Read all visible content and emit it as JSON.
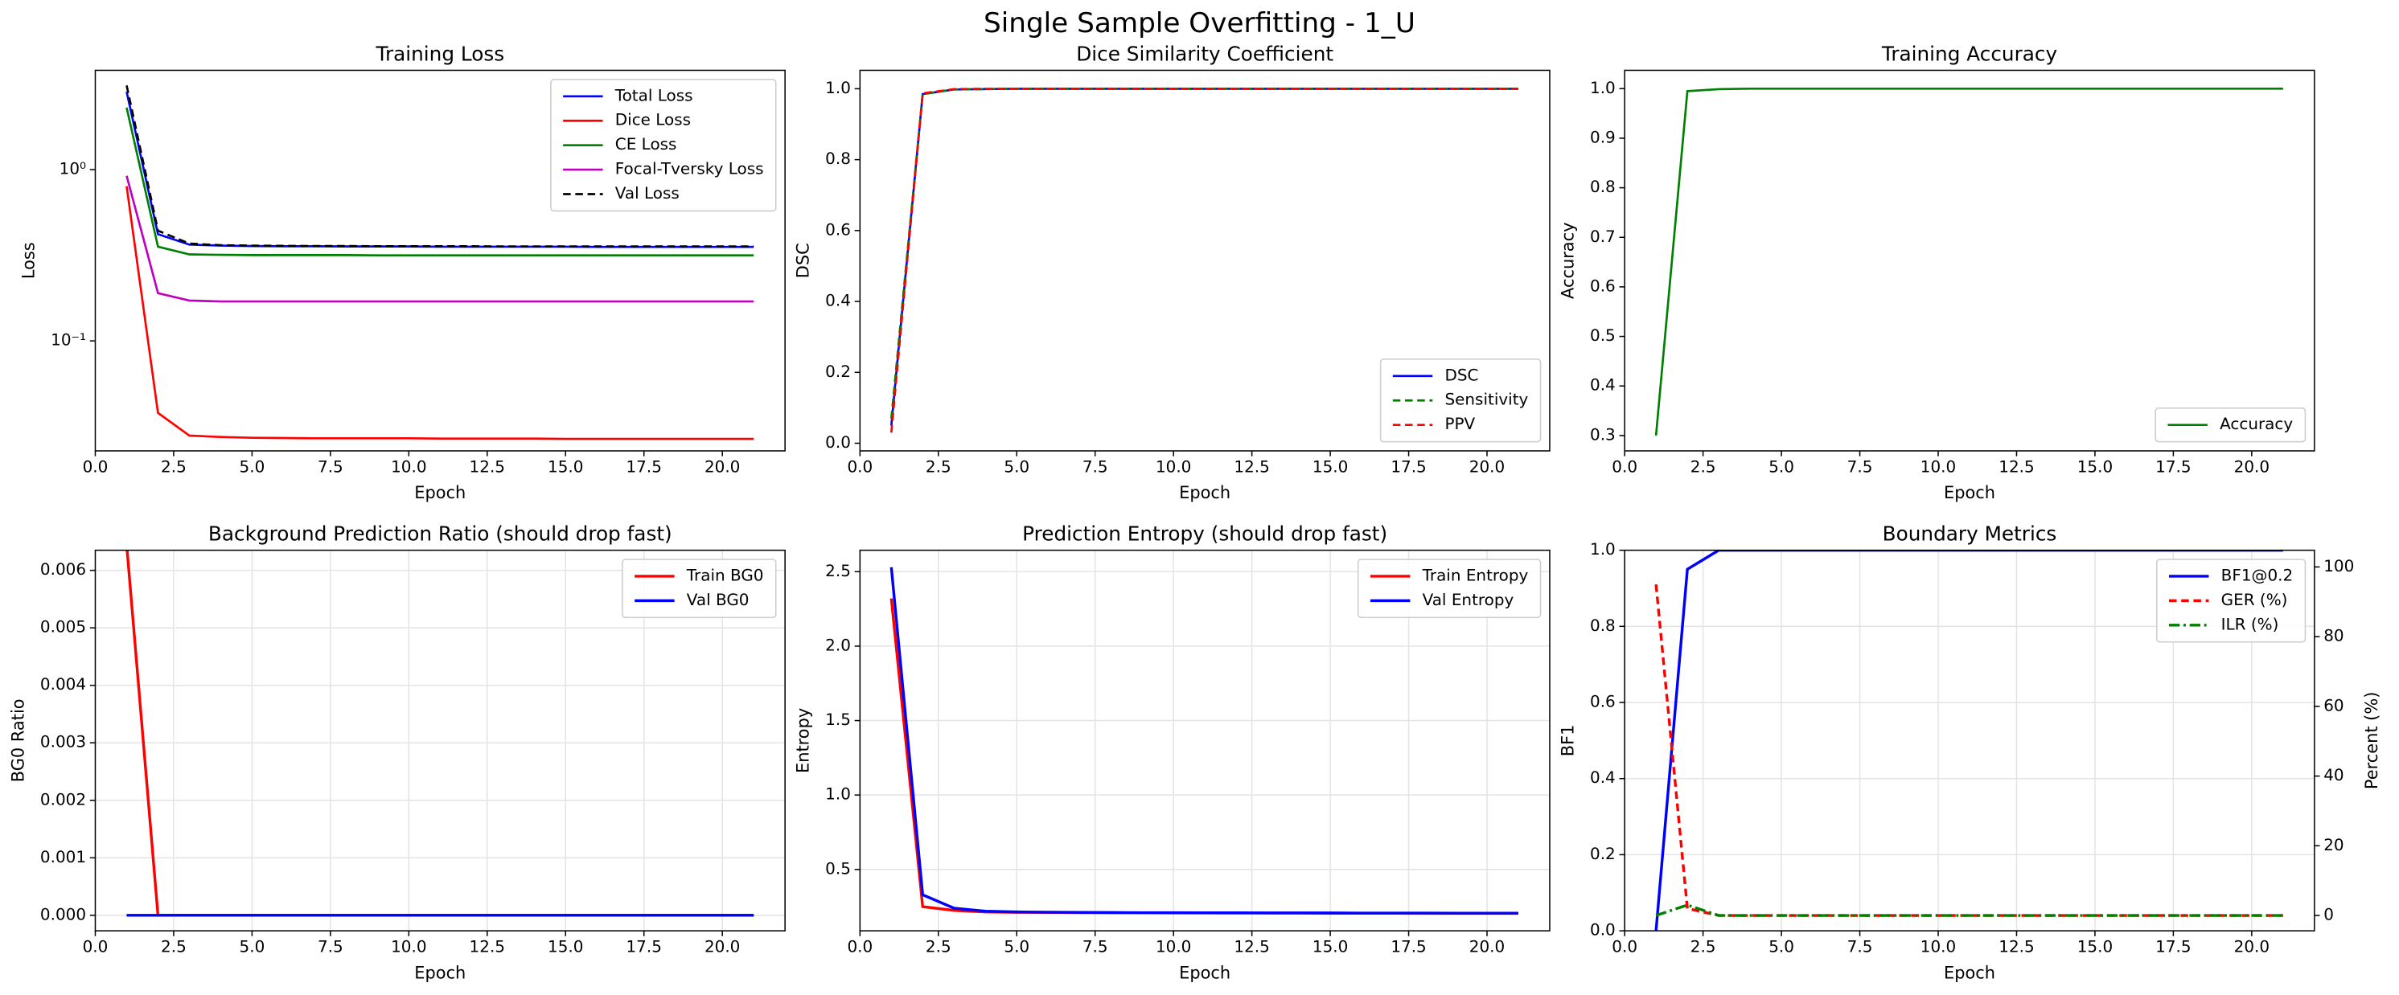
{
  "title": "Single Sample Overfitting - 1_U",
  "chart_data": [
    {
      "type": "line",
      "title": "Training Loss",
      "xlabel": "Epoch",
      "ylabel": "Loss",
      "yscale": "log",
      "grid": false,
      "legend": "upper right",
      "x": [
        1,
        2,
        3,
        4,
        5,
        6,
        7,
        8,
        9,
        10,
        11,
        12,
        13,
        14,
        15,
        16,
        17,
        18,
        19,
        20,
        21
      ],
      "xlim": [
        0,
        22
      ],
      "xticks": [
        {
          "value": 0,
          "label": "0.0"
        },
        2.5,
        {
          "value": 5,
          "label": "5.0"
        },
        7.5,
        {
          "value": 10,
          "label": "10.0"
        },
        12.5,
        {
          "value": 15,
          "label": "15.0"
        },
        17.5,
        {
          "value": 20,
          "label": "20.0"
        }
      ],
      "ylim": [
        0.0228,
        3.8
      ],
      "yticks": [
        {
          "value": 1,
          "label": "10⁰"
        },
        {
          "value": 0.1,
          "label": "10⁻¹"
        }
      ],
      "series": [
        {
          "name": "Total Loss",
          "color": "#0000ff",
          "style": "solid",
          "values": [
            2.85,
            0.42,
            0.365,
            0.36,
            0.358,
            0.357,
            0.357,
            0.356,
            0.356,
            0.356,
            0.355,
            0.355,
            0.355,
            0.355,
            0.355,
            0.354,
            0.354,
            0.354,
            0.354,
            0.354,
            0.354
          ]
        },
        {
          "name": "Dice Loss",
          "color": "#ff0000",
          "style": "solid",
          "values": [
            0.8,
            0.038,
            0.028,
            0.0275,
            0.0272,
            0.0271,
            0.027,
            0.027,
            0.027,
            0.027,
            0.0269,
            0.0269,
            0.0269,
            0.0269,
            0.0268,
            0.0268,
            0.0268,
            0.0268,
            0.0268,
            0.0268,
            0.0268
          ]
        },
        {
          "name": "CE Loss",
          "color": "#008000",
          "style": "solid",
          "values": [
            2.3,
            0.355,
            0.32,
            0.318,
            0.317,
            0.317,
            0.317,
            0.317,
            0.316,
            0.316,
            0.316,
            0.316,
            0.316,
            0.316,
            0.316,
            0.316,
            0.316,
            0.316,
            0.316,
            0.316,
            0.316
          ]
        },
        {
          "name": "Focal-Tversky Loss",
          "color": "#bf00bf",
          "style": "solid",
          "values": [
            0.92,
            0.19,
            0.172,
            0.17,
            0.17,
            0.17,
            0.17,
            0.17,
            0.17,
            0.17,
            0.17,
            0.17,
            0.17,
            0.17,
            0.17,
            0.17,
            0.17,
            0.17,
            0.17,
            0.17,
            0.17
          ]
        },
        {
          "name": "Val Loss",
          "color": "#000000",
          "style": "dashed",
          "values": [
            3.1,
            0.44,
            0.37,
            0.362,
            0.36,
            0.359,
            0.358,
            0.358,
            0.357,
            0.357,
            0.357,
            0.357,
            0.356,
            0.356,
            0.356,
            0.356,
            0.356,
            0.356,
            0.356,
            0.356,
            0.356
          ]
        }
      ]
    },
    {
      "type": "line",
      "title": "Dice Similarity Coefficient",
      "xlabel": "Epoch",
      "ylabel": "DSC",
      "yscale": "linear",
      "grid": false,
      "legend": "lower right",
      "x": [
        1,
        2,
        3,
        4,
        5,
        6,
        7,
        8,
        9,
        10,
        11,
        12,
        13,
        14,
        15,
        16,
        17,
        18,
        19,
        20,
        21
      ],
      "xlim": [
        0,
        22
      ],
      "xticks": [
        {
          "value": 0,
          "label": "0.0"
        },
        2.5,
        {
          "value": 5,
          "label": "5.0"
        },
        7.5,
        {
          "value": 10,
          "label": "10.0"
        },
        12.5,
        {
          "value": 15,
          "label": "15.0"
        },
        17.5,
        {
          "value": 20,
          "label": "20.0"
        }
      ],
      "ylim": [
        -0.0215,
        1.052
      ],
      "yticks": [
        {
          "value": 0,
          "label": "0.0"
        },
        0.2,
        0.4,
        0.6,
        0.8,
        {
          "value": 1,
          "label": "1.0"
        }
      ],
      "series": [
        {
          "name": "DSC",
          "color": "#0000ff",
          "style": "solid",
          "values": [
            0.05,
            0.985,
            0.998,
            0.999,
            1,
            1,
            1,
            1,
            1,
            1,
            1,
            1,
            1,
            1,
            1,
            1,
            1,
            1,
            1,
            1,
            1
          ]
        },
        {
          "name": "Sensitivity",
          "color": "#008000",
          "style": "dashed",
          "values": [
            0.07,
            0.985,
            0.998,
            0.999,
            1,
            1,
            1,
            1,
            1,
            1,
            1,
            1,
            1,
            1,
            1,
            1,
            1,
            1,
            1,
            1,
            1
          ]
        },
        {
          "name": "PPV",
          "color": "#ff0000",
          "style": "dashed",
          "values": [
            0.03,
            0.987,
            0.999,
            1,
            1,
            1,
            1,
            1,
            1,
            1,
            1,
            1,
            1,
            1,
            1,
            1,
            1,
            1,
            1,
            1,
            1
          ]
        }
      ]
    },
    {
      "type": "line",
      "title": "Training Accuracy",
      "xlabel": "Epoch",
      "ylabel": "Accuracy",
      "yscale": "linear",
      "grid": false,
      "legend": "lower right",
      "x": [
        1,
        2,
        3,
        4,
        5,
        6,
        7,
        8,
        9,
        10,
        11,
        12,
        13,
        14,
        15,
        16,
        17,
        18,
        19,
        20,
        21
      ],
      "xlim": [
        0,
        22
      ],
      "xticks": [
        {
          "value": 0,
          "label": "0.0"
        },
        2.5,
        {
          "value": 5,
          "label": "5.0"
        },
        7.5,
        {
          "value": 10,
          "label": "10.0"
        },
        12.5,
        {
          "value": 15,
          "label": "15.0"
        },
        17.5,
        {
          "value": 20,
          "label": "20.0"
        }
      ],
      "ylim": [
        0.269,
        1.037
      ],
      "yticks": [
        0.3,
        0.4,
        0.5,
        0.6,
        0.7,
        0.8,
        0.9,
        {
          "value": 1,
          "label": "1.0"
        }
      ],
      "series": [
        {
          "name": "Accuracy",
          "color": "#008000",
          "style": "solid",
          "values": [
            0.3,
            0.995,
            0.999,
            1,
            1,
            1,
            1,
            1,
            1,
            1,
            1,
            1,
            1,
            1,
            1,
            1,
            1,
            1,
            1,
            1,
            1
          ]
        }
      ]
    },
    {
      "type": "line",
      "title": "Background Prediction Ratio (should drop fast)",
      "xlabel": "Epoch",
      "ylabel": "BG0 Ratio",
      "yscale": "linear",
      "grid": true,
      "legend": "upper right",
      "x": [
        1,
        2,
        3,
        4,
        5,
        6,
        7,
        8,
        9,
        10,
        11,
        12,
        13,
        14,
        15,
        16,
        17,
        18,
        19,
        20,
        21
      ],
      "xlim": [
        0,
        22
      ],
      "xticks": [
        {
          "value": 0,
          "label": "0.0"
        },
        2.5,
        {
          "value": 5,
          "label": "5.0"
        },
        7.5,
        {
          "value": 10,
          "label": "10.0"
        },
        12.5,
        {
          "value": 15,
          "label": "15.0"
        },
        17.5,
        {
          "value": 20,
          "label": "20.0"
        }
      ],
      "ylim": [
        -0.00027,
        0.00635
      ],
      "yticks": [
        {
          "value": 0,
          "label": "0.000"
        },
        {
          "value": 0.001,
          "label": "0.001"
        },
        {
          "value": 0.002,
          "label": "0.002"
        },
        {
          "value": 0.003,
          "label": "0.003"
        },
        {
          "value": 0.004,
          "label": "0.004"
        },
        {
          "value": 0.005,
          "label": "0.005"
        },
        {
          "value": 0.006,
          "label": "0.006"
        }
      ],
      "series": [
        {
          "name": "Train BG0",
          "color": "#ff0000",
          "style": "solid",
          "values": [
            0.00645,
            0,
            0,
            0,
            0,
            0,
            0,
            0,
            0,
            0,
            0,
            0,
            0,
            0,
            0,
            0,
            0,
            0,
            0,
            0,
            0
          ]
        },
        {
          "name": "Val BG0",
          "color": "#0000ff",
          "style": "solid",
          "values": [
            0,
            0,
            0,
            0,
            0,
            0,
            0,
            0,
            0,
            0,
            0,
            0,
            0,
            0,
            0,
            0,
            0,
            0,
            0,
            0,
            0
          ]
        }
      ]
    },
    {
      "type": "line",
      "title": "Prediction Entropy (should drop fast)",
      "xlabel": "Epoch",
      "ylabel": "Entropy",
      "yscale": "linear",
      "grid": true,
      "legend": "upper right",
      "x": [
        1,
        2,
        3,
        4,
        5,
        6,
        7,
        8,
        9,
        10,
        11,
        12,
        13,
        14,
        15,
        16,
        17,
        18,
        19,
        20,
        21
      ],
      "xlim": [
        0,
        22
      ],
      "xticks": [
        {
          "value": 0,
          "label": "0.0"
        },
        2.5,
        {
          "value": 5,
          "label": "5.0"
        },
        7.5,
        {
          "value": 10,
          "label": "10.0"
        },
        12.5,
        {
          "value": 15,
          "label": "15.0"
        },
        17.5,
        {
          "value": 20,
          "label": "20.0"
        }
      ],
      "ylim": [
        0.088,
        2.644
      ],
      "yticks": [
        0.5,
        {
          "value": 1,
          "label": "1.0"
        },
        1.5,
        {
          "value": 2,
          "label": "2.0"
        },
        2.5
      ],
      "series": [
        {
          "name": "Train Entropy",
          "color": "#ff0000",
          "style": "solid",
          "values": [
            2.32,
            0.25,
            0.225,
            0.215,
            0.212,
            0.211,
            0.21,
            0.209,
            0.209,
            0.208,
            0.208,
            0.207,
            0.207,
            0.207,
            0.206,
            0.206,
            0.206,
            0.205,
            0.205,
            0.205,
            0.205
          ]
        },
        {
          "name": "Val Entropy",
          "color": "#0000ff",
          "style": "solid",
          "values": [
            2.53,
            0.33,
            0.24,
            0.22,
            0.215,
            0.213,
            0.212,
            0.211,
            0.21,
            0.21,
            0.209,
            0.209,
            0.208,
            0.208,
            0.208,
            0.207,
            0.207,
            0.207,
            0.206,
            0.206,
            0.206
          ]
        }
      ]
    },
    {
      "type": "line",
      "title": "Boundary Metrics",
      "xlabel": "Epoch",
      "ylabel": "BF1",
      "y2label": "Percent (%)",
      "yscale": "linear",
      "grid": true,
      "legend": "upper right",
      "x": [
        1,
        2,
        3,
        4,
        5,
        6,
        7,
        8,
        9,
        10,
        11,
        12,
        13,
        14,
        15,
        16,
        17,
        18,
        19,
        20,
        21
      ],
      "xlim": [
        0,
        22
      ],
      "xticks": [
        {
          "value": 0,
          "label": "0.0"
        },
        2.5,
        {
          "value": 5,
          "label": "5.0"
        },
        7.5,
        {
          "value": 10,
          "label": "10.0"
        },
        12.5,
        {
          "value": 15,
          "label": "15.0"
        },
        17.5,
        {
          "value": 20,
          "label": "20.0"
        }
      ],
      "ylim": [
        0,
        1
      ],
      "yticks": [
        {
          "value": 0,
          "label": "0.0"
        },
        0.2,
        0.4,
        0.6,
        0.8,
        {
          "value": 1,
          "label": "1.0"
        }
      ],
      "y2lim": [
        -4.4,
        104.8
      ],
      "y2ticks": [
        0,
        20,
        40,
        60,
        80,
        100
      ],
      "series": [
        {
          "name": "BF1@0.2",
          "color": "#0000ff",
          "style": "solid",
          "values": [
            0,
            0.95,
            1,
            1,
            1,
            1,
            1,
            1,
            1,
            1,
            1,
            1,
            1,
            1,
            1,
            1,
            1,
            1,
            1,
            1,
            1
          ]
        },
        {
          "name": "GER (%)",
          "color": "#ff0000",
          "style": "dashed",
          "axis": "y2",
          "values": [
            95,
            2,
            0,
            0,
            0,
            0,
            0,
            0,
            0,
            0,
            0,
            0,
            0,
            0,
            0,
            0,
            0,
            0,
            0,
            0,
            0
          ]
        },
        {
          "name": "ILR (%)",
          "color": "#008000",
          "style": "dashdot",
          "axis": "y2",
          "values": [
            0,
            3,
            0,
            0,
            0,
            0,
            0,
            0,
            0,
            0,
            0,
            0,
            0,
            0,
            0,
            0,
            0,
            0,
            0,
            0,
            0
          ]
        }
      ]
    }
  ]
}
